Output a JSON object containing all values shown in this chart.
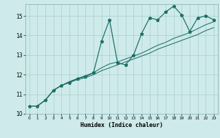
{
  "xlabel": "Humidex (Indice chaleur)",
  "ylabel": "",
  "background_color": "#ceeaea",
  "grid_color": "#aacece",
  "line_color": "#1a6e64",
  "xlim": [
    -0.5,
    23.5
  ],
  "ylim": [
    10.0,
    15.6
  ],
  "yticks": [
    10,
    11,
    12,
    13,
    14,
    15
  ],
  "xticks": [
    0,
    1,
    2,
    3,
    4,
    5,
    6,
    7,
    8,
    9,
    10,
    11,
    12,
    13,
    14,
    15,
    16,
    17,
    18,
    19,
    20,
    21,
    22,
    23
  ],
  "line1_x": [
    0,
    1,
    2,
    3,
    4,
    5,
    6,
    7,
    8,
    9,
    10,
    11,
    12,
    13,
    14,
    15,
    16,
    17,
    18,
    19,
    20,
    21,
    22,
    23
  ],
  "line1_y": [
    10.4,
    10.4,
    10.7,
    11.2,
    11.45,
    11.6,
    11.8,
    11.9,
    12.1,
    13.7,
    14.8,
    12.6,
    12.5,
    13.0,
    14.1,
    14.9,
    14.8,
    15.2,
    15.5,
    15.05,
    14.2,
    14.9,
    15.0,
    14.8
  ],
  "line2_x": [
    0,
    1,
    2,
    3,
    4,
    5,
    6,
    7,
    8,
    9,
    10,
    11,
    12,
    13,
    14,
    15,
    16,
    17,
    18,
    19,
    20,
    21,
    22,
    23
  ],
  "line2_y": [
    10.4,
    10.4,
    10.7,
    11.2,
    11.45,
    11.6,
    11.75,
    11.85,
    12.0,
    12.2,
    12.35,
    12.5,
    12.65,
    12.8,
    12.95,
    13.1,
    13.3,
    13.45,
    13.6,
    13.75,
    13.9,
    14.05,
    14.25,
    14.4
  ],
  "line3_x": [
    0,
    1,
    2,
    3,
    4,
    5,
    6,
    7,
    8,
    9,
    10,
    11,
    12,
    13,
    14,
    15,
    16,
    17,
    18,
    19,
    20,
    21,
    22,
    23
  ],
  "line3_y": [
    10.4,
    10.4,
    10.7,
    11.2,
    11.45,
    11.65,
    11.8,
    11.95,
    12.1,
    12.35,
    12.55,
    12.65,
    12.8,
    12.95,
    13.1,
    13.3,
    13.5,
    13.65,
    13.85,
    14.0,
    14.15,
    14.35,
    14.55,
    14.7
  ]
}
